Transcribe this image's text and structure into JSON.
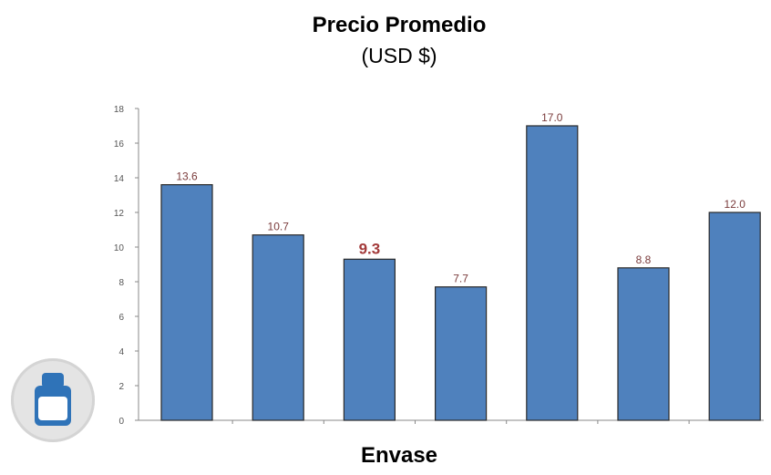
{
  "chart_data": {
    "type": "bar",
    "title": "Precio Promedio",
    "subtitle": "(USD $)",
    "xlabel": "Envase",
    "ylabel": "",
    "categories": [
      "",
      "",
      "",
      "",
      "",
      "",
      ""
    ],
    "values": [
      13.6,
      10.7,
      9.3,
      7.7,
      17.0,
      8.8,
      12.0
    ],
    "data_labels": [
      "13.6",
      "10.7",
      "9.3",
      "7.7",
      "17.0",
      "8.8",
      "12.0"
    ],
    "highlight_index": 2,
    "ylim": [
      0,
      18
    ],
    "yticks": [
      0,
      2,
      4,
      6,
      8,
      10,
      12,
      14,
      16,
      18
    ],
    "grid": false,
    "legend": "none",
    "colors": {
      "bar": "#4f81bd",
      "bar_edge": "#2a2a2a",
      "label": "#7a3b3b",
      "highlight_label": "#a33a3a",
      "axis": "#888888"
    }
  },
  "badge": {
    "icon": "bottle-icon"
  }
}
